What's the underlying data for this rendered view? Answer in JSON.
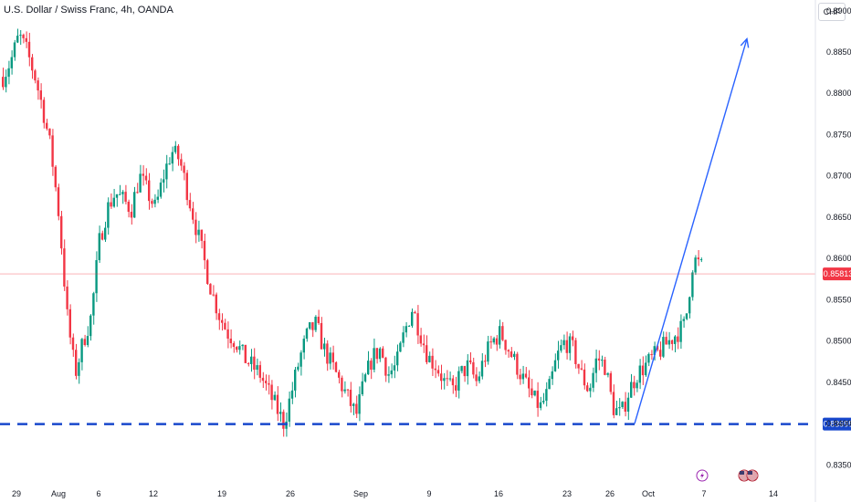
{
  "header": {
    "title": "U.S. Dollar / Swiss Franc, 4h, OANDA",
    "currency": "CHF"
  },
  "chart_data": {
    "type": "candlestick",
    "ylim": [
      0.8325,
      0.8913
    ],
    "price_axis": [
      "0.89000",
      "0.88500",
      "0.88000",
      "0.87500",
      "0.87000",
      "0.86500",
      "0.86000",
      "0.85500",
      "0.85000",
      "0.84500",
      "0.84000",
      "0.83500"
    ],
    "time_axis": [
      "29",
      "Aug",
      "6",
      "12",
      "19",
      "26",
      "Sep",
      "9",
      "16",
      "23",
      "26",
      "Oct",
      "7",
      "14"
    ],
    "current_price": {
      "value": 0.85813,
      "label": "0.85813"
    },
    "support_level": {
      "value": 0.83995,
      "label": "0.83995"
    },
    "projection_arrow": {
      "from": 0.84,
      "to": 0.8866
    },
    "swing_path": [
      0.882,
      0.884,
      0.887,
      0.885,
      0.882,
      0.878,
      0.873,
      0.865,
      0.853,
      0.846,
      0.85,
      0.853,
      0.862,
      0.866,
      0.868,
      0.867,
      0.866,
      0.87,
      0.868,
      0.866,
      0.87,
      0.873,
      0.872,
      0.868,
      0.864,
      0.86,
      0.856,
      0.853,
      0.851,
      0.85,
      0.848,
      0.847,
      0.846,
      0.844,
      0.842,
      0.84,
      0.844,
      0.848,
      0.851,
      0.852,
      0.849,
      0.847,
      0.845,
      0.843,
      0.841,
      0.845,
      0.848,
      0.849,
      0.846,
      0.847,
      0.851,
      0.854,
      0.851,
      0.848,
      0.847,
      0.845,
      0.844,
      0.846,
      0.847,
      0.845,
      0.848,
      0.85,
      0.851,
      0.849,
      0.847,
      0.845,
      0.843,
      0.842,
      0.844,
      0.848,
      0.85,
      0.849,
      0.846,
      0.844,
      0.848,
      0.847,
      0.842,
      0.841,
      0.844,
      0.846,
      0.847,
      0.848,
      0.849,
      0.85,
      0.851,
      0.852,
      0.86,
      0.859
    ],
    "legend_icons": [
      "lightning-icon",
      "us-flag-icon",
      "us-flag-icon"
    ]
  }
}
